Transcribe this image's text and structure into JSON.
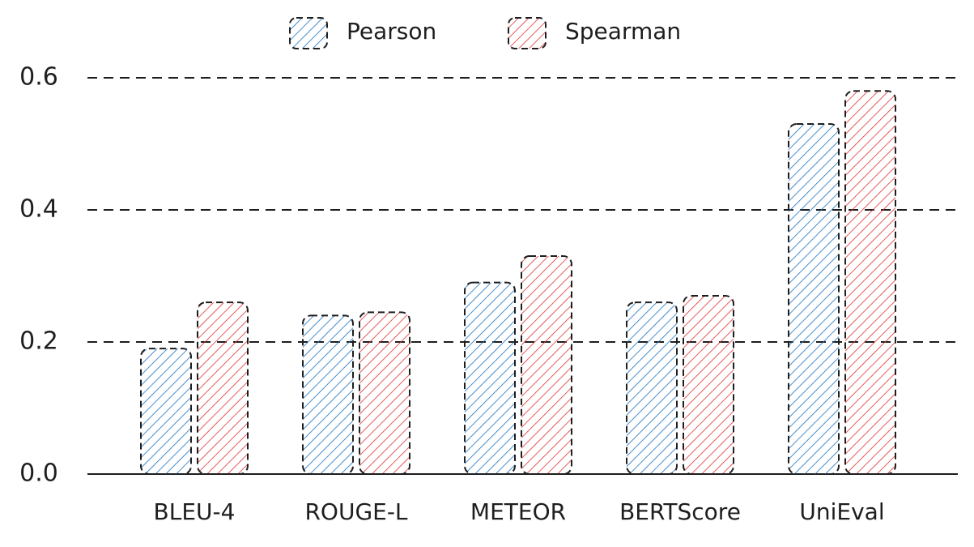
{
  "chart_data": {
    "type": "bar",
    "categories": [
      "BLEU-4",
      "ROUGE-L",
      "METEOR",
      "BERTScore",
      "UniEval"
    ],
    "series": [
      {
        "name": "Pearson",
        "color": "#1971c2",
        "values": [
          0.19,
          0.24,
          0.29,
          0.26,
          0.53
        ]
      },
      {
        "name": "Spearman",
        "color": "#e03131",
        "values": [
          0.26,
          0.245,
          0.33,
          0.27,
          0.58
        ]
      }
    ],
    "ylim": [
      0,
      0.6
    ],
    "yticks": [
      {
        "value": 0,
        "label": "0.0"
      },
      0.2,
      0.4,
      0.6
    ],
    "grid": true,
    "legend": "top"
  }
}
